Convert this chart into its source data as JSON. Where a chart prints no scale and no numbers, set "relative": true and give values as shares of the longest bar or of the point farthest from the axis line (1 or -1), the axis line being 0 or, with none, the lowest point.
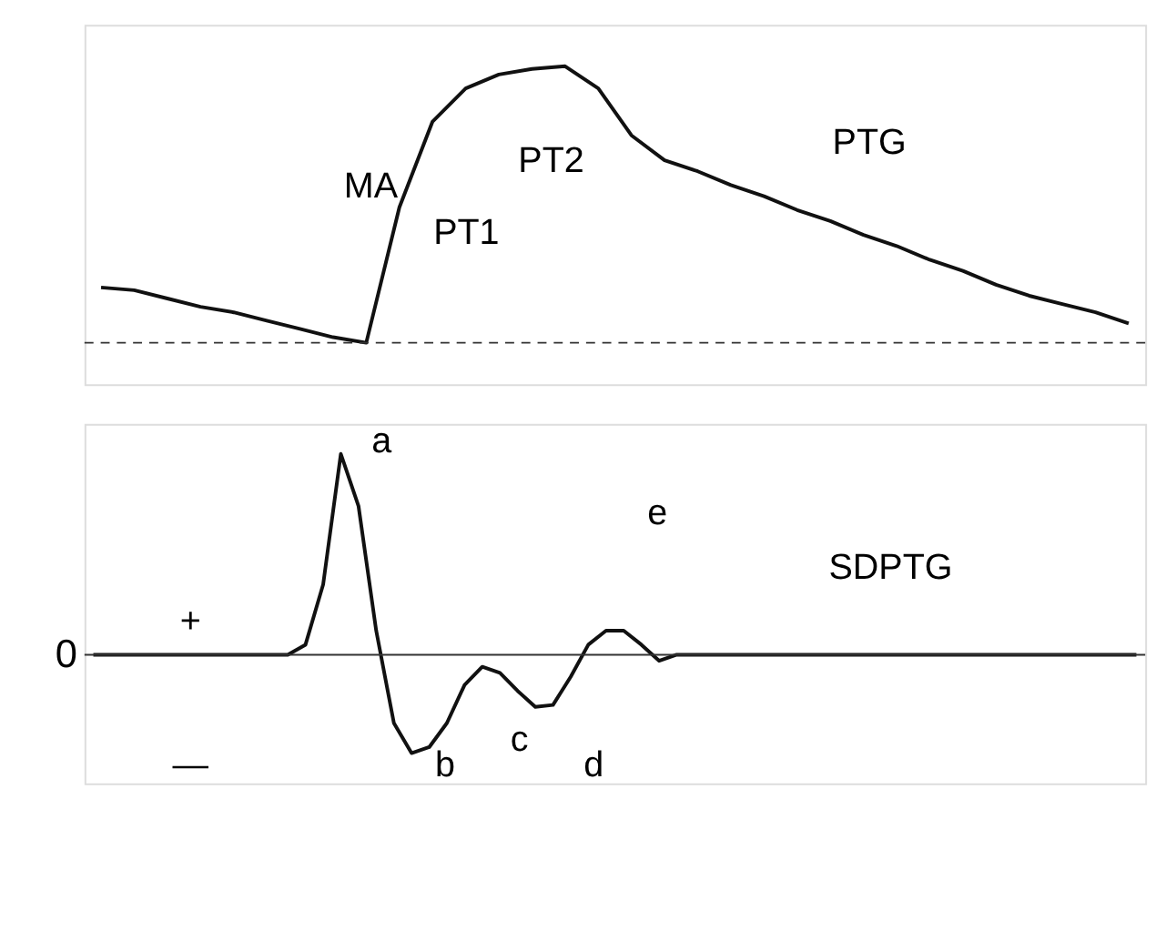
{
  "chart_data": [
    {
      "type": "line",
      "relative": true,
      "categories": [
        null,
        null,
        null,
        null,
        null,
        null,
        null,
        null,
        null,
        null,
        null,
        null,
        null,
        null,
        null,
        null,
        null,
        null,
        null,
        null,
        null,
        null,
        null,
        null,
        null,
        null,
        null,
        null,
        null,
        null,
        null,
        null
      ],
      "series": [
        {
          "color": "#111111",
          "values": [
            0.2,
            0.19,
            0.16,
            0.13,
            0.11,
            0.08,
            0.05,
            0.02,
            0,
            0.49,
            0.8,
            0.92,
            0.97,
            0.99,
            1,
            0.92,
            0.75,
            0.66,
            0.62,
            0.57,
            0.53,
            0.48,
            0.44,
            0.39,
            0.35,
            0.3,
            0.26,
            0.21,
            0.17,
            0.14,
            0.11,
            0.07
          ]
        }
      ],
      "ref_lines": [
        {
          "axis": "y",
          "value": 0,
          "line_style": "dashed"
        }
      ],
      "annotations": [
        "MA",
        "PT1",
        "PT2",
        "PTG"
      ]
    },
    {
      "type": "line",
      "relative": true,
      "categories": [
        null,
        null,
        null,
        null,
        null,
        null,
        null,
        null,
        null,
        null,
        null,
        null,
        null,
        null,
        null,
        null,
        null,
        null,
        null,
        null,
        null,
        null,
        null,
        null,
        null,
        null,
        null,
        null,
        null,
        null,
        null,
        null,
        null,
        null,
        null,
        null,
        null,
        null,
        null,
        null,
        null,
        null,
        null,
        null,
        null,
        null,
        null,
        null,
        null,
        null,
        null,
        null,
        null,
        null,
        null,
        null,
        null,
        null,
        null,
        null
      ],
      "series": [
        {
          "color": "#111111",
          "values": [
            0,
            0,
            0,
            0,
            0,
            0,
            0,
            0,
            0,
            0,
            0,
            0,
            0.05,
            0.35,
            1,
            0.74,
            0.12,
            -0.34,
            -0.49,
            -0.46,
            -0.34,
            -0.15,
            -0.06,
            -0.09,
            -0.18,
            -0.26,
            -0.25,
            -0.11,
            0.05,
            0.12,
            0.12,
            0.05,
            -0.03,
            0,
            0,
            0,
            0,
            0,
            0,
            0,
            0,
            0,
            0,
            0,
            0,
            0,
            0,
            0,
            0,
            0,
            0,
            0,
            0,
            0,
            0,
            0,
            0,
            0,
            0,
            0
          ]
        }
      ],
      "ref_lines": [
        {
          "axis": "y",
          "value": 0,
          "label": "0"
        }
      ],
      "annotations": [
        "a",
        "b",
        "c",
        "d",
        "e",
        "SDPTG",
        "+",
        "—"
      ]
    }
  ]
}
